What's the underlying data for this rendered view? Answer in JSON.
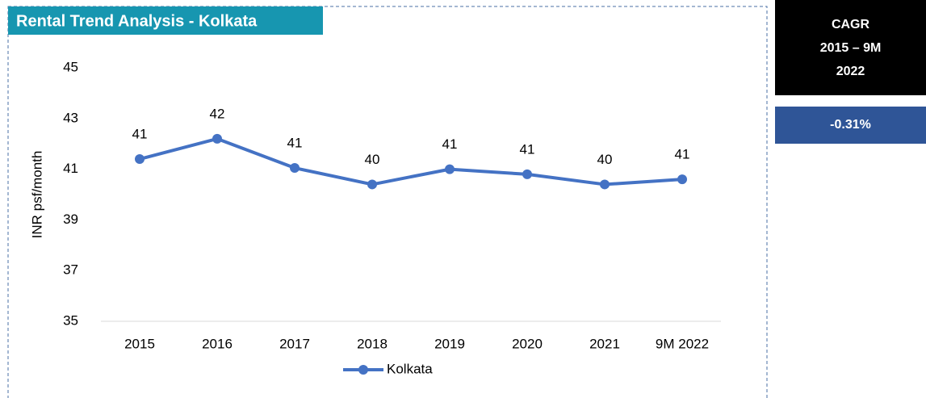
{
  "chart_data": {
    "type": "line",
    "title": "Rental Trend Analysis - Kolkata",
    "ylabel": "INR psf/month",
    "categories": [
      "2015",
      "2016",
      "2017",
      "2018",
      "2019",
      "2020",
      "2021",
      "9M 2022"
    ],
    "series": [
      {
        "name": "Kolkata",
        "color": "#4472c4",
        "values": [
          41.4,
          42.2,
          41.05,
          40.4,
          41.0,
          40.8,
          40.4,
          40.6
        ],
        "value_labels": [
          "41",
          "42",
          "41",
          "40",
          "41",
          "41",
          "40",
          "41"
        ]
      }
    ],
    "ylim": [
      35,
      45
    ],
    "yticks": [
      35,
      37,
      39,
      41,
      43,
      45
    ],
    "grid": false,
    "legend": "bottom"
  },
  "sidebar": {
    "header": [
      "CAGR",
      "2015 – 9M",
      "2022"
    ],
    "value": "-0.31%"
  }
}
